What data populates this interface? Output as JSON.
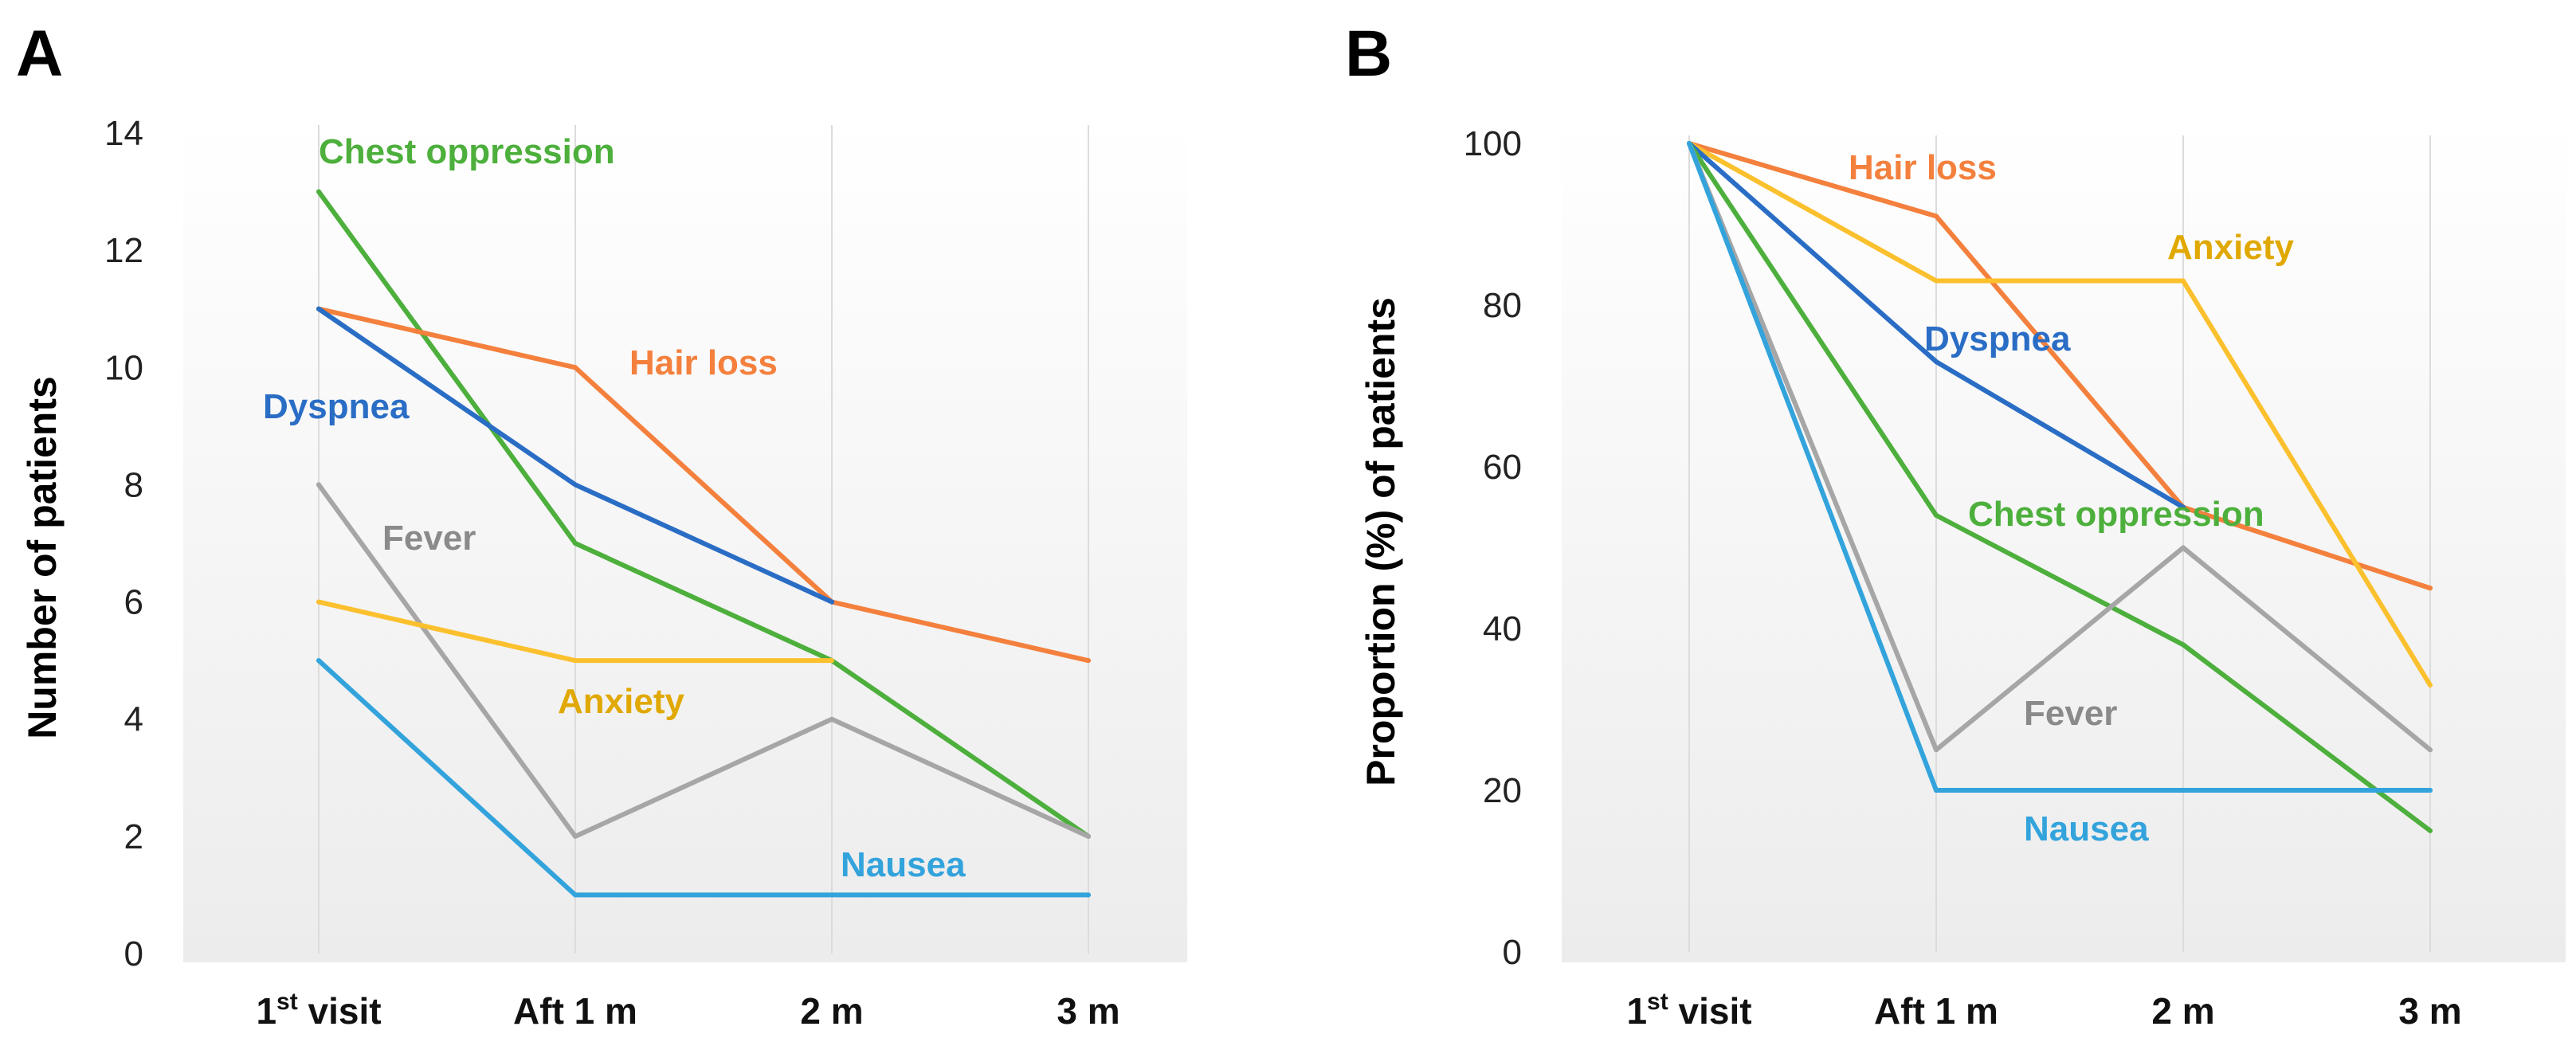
{
  "chart_data": [
    {
      "panel": "A",
      "type": "line",
      "ylabel": "Number of patients",
      "ylim": [
        0,
        14
      ],
      "yticks": [
        0,
        2,
        4,
        6,
        8,
        10,
        12,
        14
      ],
      "categories": [
        "1st visit",
        "Aft 1 m",
        "2 m",
        "3 m"
      ],
      "series": [
        {
          "name": "Chest oppression",
          "color": "#4daf3c",
          "values": [
            13,
            7,
            5,
            2
          ]
        },
        {
          "name": "Hair loss",
          "color": "#f4803d",
          "values": [
            11,
            10,
            6,
            5
          ]
        },
        {
          "name": "Dyspnea",
          "color": "#2a6dc5",
          "values": [
            11,
            8,
            6,
            null
          ]
        },
        {
          "name": "Fever",
          "color": "#a6a6a6",
          "values": [
            8,
            2,
            4,
            2
          ]
        },
        {
          "name": "Anxiety",
          "color": "#fbc02d",
          "values": [
            6,
            5,
            5,
            null
          ]
        },
        {
          "name": "Nausea",
          "color": "#33a3dc",
          "values": [
            5,
            1,
            1,
            1
          ]
        }
      ],
      "label_colors": {
        "Chest oppression": "#4daf3c",
        "Hair loss": "#f4803d",
        "Dyspnea": "#2a6dc5",
        "Fever": "#8a8a8a",
        "Anxiety": "#e0a800",
        "Nausea": "#33a3dc"
      }
    },
    {
      "panel": "B",
      "type": "line",
      "ylabel": "Proportion (%) of patients",
      "ylim": [
        0,
        100
      ],
      "yticks": [
        0,
        20,
        40,
        60,
        80,
        100
      ],
      "categories": [
        "1st visit",
        "Aft 1 m",
        "2 m",
        "3 m"
      ],
      "series": [
        {
          "name": "Hair loss",
          "color": "#f4803d",
          "values": [
            100,
            91,
            55,
            45
          ]
        },
        {
          "name": "Anxiety",
          "color": "#fbc02d",
          "values": [
            100,
            83,
            83,
            33
          ]
        },
        {
          "name": "Dyspnea",
          "color": "#2a6dc5",
          "values": [
            100,
            73,
            55,
            null
          ]
        },
        {
          "name": "Chest oppression",
          "color": "#4daf3c",
          "values": [
            100,
            54,
            38,
            15
          ]
        },
        {
          "name": "Fever",
          "color": "#a6a6a6",
          "values": [
            100,
            25,
            50,
            25
          ]
        },
        {
          "name": "Nausea",
          "color": "#33a3dc",
          "values": [
            100,
            20,
            20,
            20
          ]
        }
      ],
      "label_colors": {
        "Chest oppression": "#4daf3c",
        "Hair loss": "#f4803d",
        "Dyspnea": "#2a6dc5",
        "Fever": "#8a8a8a",
        "Anxiety": "#e0a800",
        "Nausea": "#33a3dc"
      }
    }
  ]
}
